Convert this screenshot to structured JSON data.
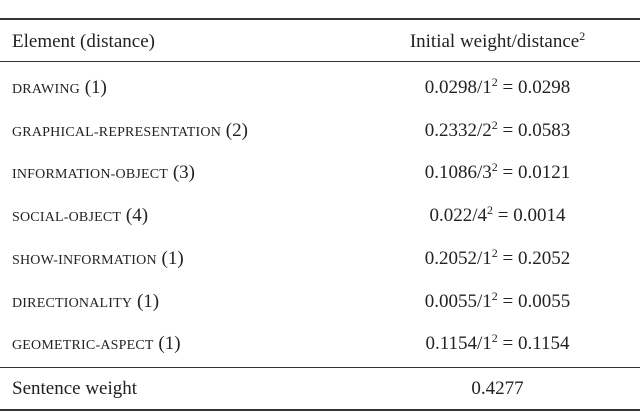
{
  "table": {
    "header": {
      "element": "Element (distance)",
      "weight": {
        "text": "Initial weight/distance",
        "exp": "2"
      }
    },
    "rows": [
      {
        "name": "DRAWING",
        "distance": "(1)",
        "base": "0.0298/1",
        "exp": "2",
        "result": "= 0.0298"
      },
      {
        "name": "GRAPHICAL-REPRESENTATION",
        "distance": "(2)",
        "base": "0.2332/2",
        "exp": "2",
        "result": "= 0.0583"
      },
      {
        "name": "INFORMATION-OBJECT",
        "distance": "(3)",
        "base": "0.1086/3",
        "exp": "2",
        "result": "= 0.0121"
      },
      {
        "name": "SOCIAL-OBJECT",
        "distance": "(4)",
        "base": "0.022/4",
        "exp": "2",
        "result": "= 0.0014"
      },
      {
        "name": "SHOW-INFORMATION",
        "distance": "(1)",
        "base": "0.2052/1",
        "exp": "2",
        "result": "= 0.2052"
      },
      {
        "name": "DIRECTIONALITY",
        "distance": "(1)",
        "base": "0.0055/1",
        "exp": "2",
        "result": "= 0.0055"
      },
      {
        "name": "GEOMETRIC-ASPECT",
        "distance": "(1)",
        "base": "0.1154/1",
        "exp": "2",
        "result": "= 0.1154"
      }
    ],
    "footer": {
      "label": "Sentence weight",
      "value": "0.4277"
    }
  }
}
